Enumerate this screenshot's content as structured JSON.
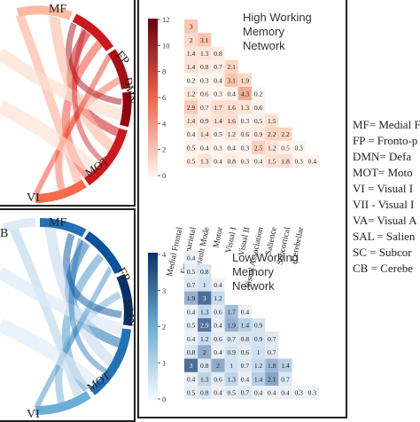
{
  "colors": {
    "red_dark": "#67000d",
    "red_light": "#fee0d2",
    "blue_dark": "#08306b",
    "blue_light": "#deebf7"
  },
  "chord_top": {
    "labels": [
      "MF",
      "FP",
      "DMN",
      "MOT",
      "VI"
    ],
    "partial_label": ""
  },
  "chord_bottom": {
    "labels": [
      "B",
      "MF",
      "FP",
      "DMN",
      "MOT",
      "VI"
    ]
  },
  "heatmaps": {
    "regions": [
      "Medial Frontal",
      "Frontoparietal",
      "Default Mode",
      "Motor",
      "Visual I",
      "Visual II",
      "Visual Association",
      "Salience",
      "Subcortical",
      "Cerebellar"
    ],
    "high": {
      "title_lines": [
        "High Working",
        "Memory",
        "Network"
      ],
      "colorbar_ticks": [
        "0",
        "2",
        "4",
        "6",
        "8",
        "10",
        "12"
      ],
      "vmax": 12,
      "rows": [
        [
          "3"
        ],
        [
          "2",
          "3.1"
        ],
        [
          "1.4",
          "1.3",
          "0.8"
        ],
        [
          "1.4",
          "0.8",
          "0.7",
          "2.1"
        ],
        [
          "0.2",
          "0.3",
          "0.4",
          "3.1",
          "1.9"
        ],
        [
          "1.2",
          "0.6",
          "0.3",
          "0.4",
          "4.3",
          "0.2"
        ],
        [
          "2.9",
          "0.7",
          "1.7",
          "1.6",
          "1.3",
          "0.6"
        ],
        [
          "1.4",
          "0.9",
          "1.4",
          "1.6",
          "0.3",
          "0.5",
          "1.5"
        ],
        [
          "0.4",
          "1.4",
          "0.5",
          "1.2",
          "0.6",
          "0.9",
          "2.2",
          "2.2"
        ],
        [
          "0.5",
          "0.4",
          "0.3",
          "0.4",
          "0.3",
          "2.5",
          "1.2",
          "0.5",
          "0.3"
        ],
        [
          "0.5",
          "1.3",
          "0.4",
          "0.8",
          "0.3",
          "0.4",
          "1.5",
          "1.8",
          "0.3",
          "0.4"
        ]
      ]
    },
    "low": {
      "title_lines": [
        "Low Working",
        "Memory",
        "Network"
      ],
      "colorbar_ticks": [
        "0",
        "1",
        "2",
        "3",
        "4"
      ],
      "vmax": 4,
      "rows": [
        [
          "0.4"
        ],
        [
          "0.5",
          "0.8"
        ],
        [
          "0.7",
          "1",
          "0.4"
        ],
        [
          "1.9",
          "3",
          "1.2"
        ],
        [
          "0.4",
          "1.3",
          "0.6",
          "1.7",
          "0.4"
        ],
        [
          "0.5",
          "2.9",
          "0.4",
          "1.9",
          "1.4",
          "0.9"
        ],
        [
          "0.4",
          "1.2",
          "0.6",
          "0.7",
          "0.8",
          "0.9",
          "0.7"
        ],
        [
          "0.8",
          "2",
          "0.4",
          "0.9",
          "0.6",
          "1",
          "0.7"
        ],
        [
          "3",
          "0.8",
          "2",
          "1",
          "0.7",
          "1.2",
          "1.8",
          "1.4"
        ],
        [
          "0.4",
          "1.3",
          "0.6",
          "1.3",
          "0.4",
          "1.4",
          "2.1",
          "0.7"
        ],
        [
          "0.5",
          "0.8",
          "0.4",
          "0.5",
          "0.7",
          "0.4",
          "0.4",
          "0.4",
          "0.3",
          "0.3"
        ]
      ]
    }
  },
  "legend": [
    "MF= Medial F",
    "FP = Fronto-p",
    "DMN= Defa",
    "MOT= Moto",
    "VI = Visual I",
    "VII - Visual I",
    "VA= Visual A",
    "SAL = Salien",
    "SC = Subcor",
    "CB = Cerebe"
  ]
}
